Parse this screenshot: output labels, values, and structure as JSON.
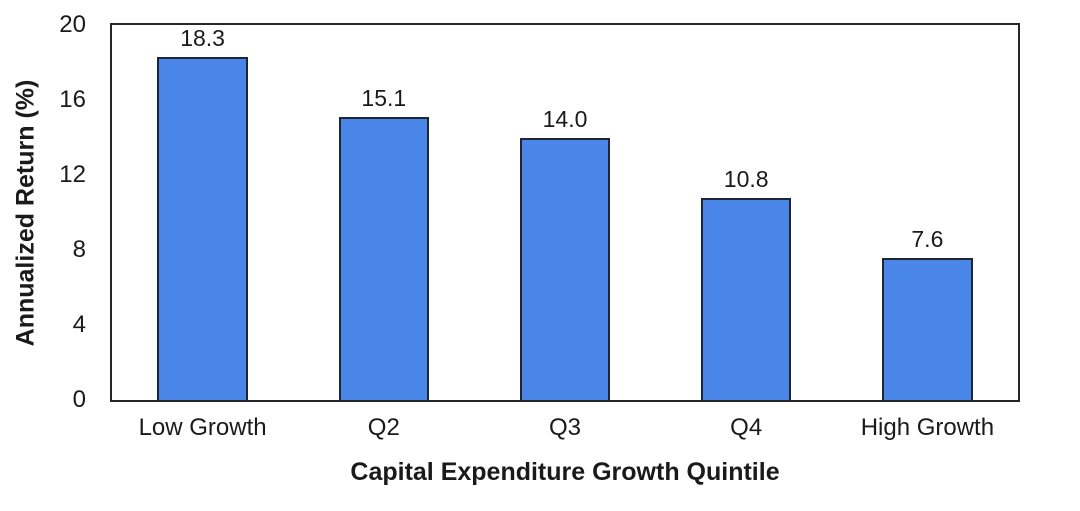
{
  "chart_data": {
    "type": "bar",
    "title": "",
    "categories": [
      "Low Growth",
      "Q2",
      "Q3",
      "Q4",
      "High Growth"
    ],
    "values": [
      18.3,
      15.1,
      14.0,
      10.8,
      7.6
    ],
    "value_labels": [
      "18.3",
      "15.1",
      "14.0",
      "10.8",
      "7.6"
    ],
    "xlabel": "Capital Expenditure Growth Quintile",
    "ylabel": "Annualized Return (%)",
    "ylim": [
      0,
      20
    ],
    "yticks": [
      0,
      4,
      8,
      12,
      16,
      20
    ],
    "grid": false,
    "legend_position": "none",
    "bar_width_fraction": 0.5,
    "colors": {
      "bar_fill": "#4A86E8",
      "bar_border": "#1E2633",
      "axis_line": "#262626",
      "text": "#1A1A1A"
    }
  }
}
